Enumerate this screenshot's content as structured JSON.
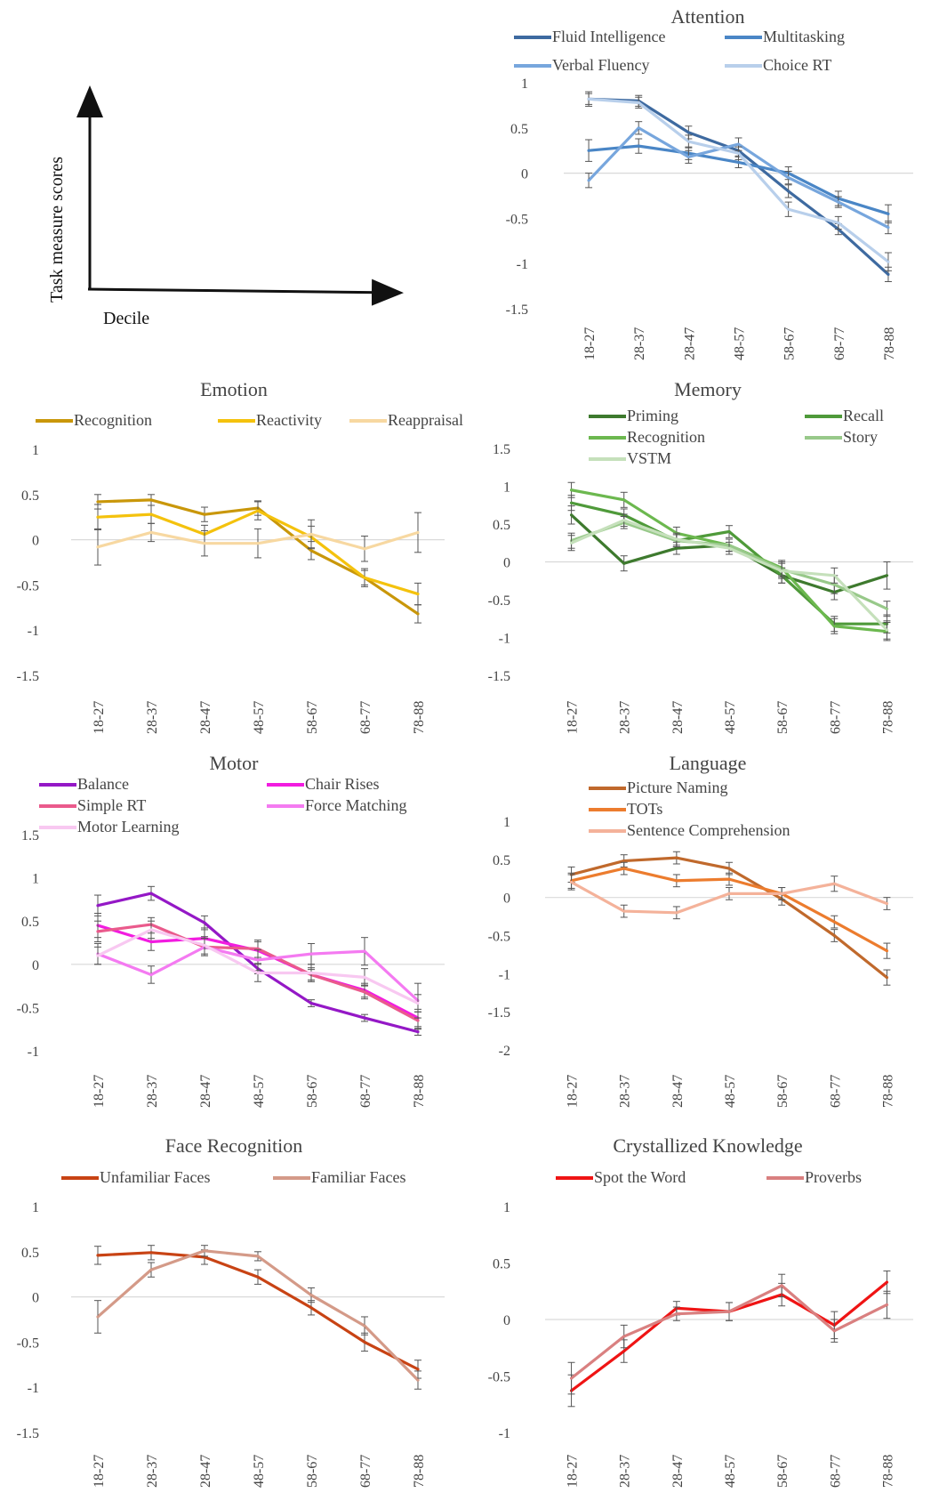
{
  "schematic": {
    "y_label": "Task measure scores",
    "x_label": "Decile"
  },
  "chart_data": [
    {
      "id": "attention",
      "type": "line",
      "title": "Attention",
      "categories": [
        "18-27",
        "28-37",
        "28-47",
        "48-57",
        "58-67",
        "68-77",
        "78-88"
      ],
      "yticks": [
        "1",
        "0.5",
        "0",
        "-0.5",
        "-1",
        "-1.5"
      ],
      "ylim": [
        -1.5,
        1
      ],
      "error_bars": true,
      "legend_columns": 2,
      "series": [
        {
          "name": "Fluid Intelligence",
          "color": "#3e6aa0",
          "values": [
            0.82,
            0.8,
            0.45,
            0.25,
            -0.2,
            -0.62,
            -1.12
          ],
          "err": [
            0.08,
            0.06,
            0.07,
            0.06,
            0.07,
            0.06,
            0.08
          ]
        },
        {
          "name": "Multitasking",
          "color": "#4a86c6",
          "values": [
            0.25,
            0.3,
            0.22,
            0.12,
            0.0,
            -0.28,
            -0.45
          ],
          "err": [
            0.12,
            0.08,
            0.07,
            0.06,
            0.07,
            0.08,
            0.1
          ]
        },
        {
          "name": "Verbal Fluency",
          "color": "#77a6dd",
          "values": [
            -0.08,
            0.5,
            0.18,
            0.32,
            -0.05,
            -0.32,
            -0.6
          ],
          "err": [
            0.08,
            0.07,
            0.07,
            0.07,
            0.07,
            0.06,
            0.07
          ]
        },
        {
          "name": "Choice RT",
          "color": "#b8cfeb",
          "values": [
            0.82,
            0.78,
            0.35,
            0.22,
            -0.4,
            -0.55,
            -0.98
          ],
          "err": [
            0.06,
            0.06,
            0.07,
            0.07,
            0.08,
            0.07,
            0.1
          ]
        }
      ]
    },
    {
      "id": "emotion",
      "type": "line",
      "title": "Emotion",
      "categories": [
        "18-27",
        "28-37",
        "28-47",
        "48-57",
        "58-67",
        "68-77",
        "78-88"
      ],
      "yticks": [
        "1",
        "0.5",
        "0",
        "-0.5",
        "-1",
        "-1.5"
      ],
      "ylim": [
        -1.5,
        1
      ],
      "error_bars": true,
      "legend_columns": 3,
      "series": [
        {
          "name": "Recognition",
          "color": "#c9970a",
          "values": [
            0.42,
            0.44,
            0.28,
            0.35,
            -0.12,
            -0.42,
            -0.82
          ],
          "err": [
            0.08,
            0.06,
            0.08,
            0.08,
            0.1,
            0.08,
            0.1
          ]
        },
        {
          "name": "Reactivity",
          "color": "#f4c20d",
          "values": [
            0.25,
            0.28,
            0.06,
            0.32,
            0.03,
            -0.42,
            -0.6
          ],
          "err": [
            0.14,
            0.1,
            0.1,
            0.1,
            0.12,
            0.1,
            0.12
          ]
        },
        {
          "name": "Reappraisal",
          "color": "#f7d8a1",
          "values": [
            -0.08,
            0.08,
            -0.04,
            -0.04,
            0.06,
            -0.1,
            0.08
          ],
          "err": [
            0.2,
            0.1,
            0.14,
            0.16,
            0.16,
            0.14,
            0.22
          ]
        }
      ]
    },
    {
      "id": "memory",
      "type": "line",
      "title": "Memory",
      "categories": [
        "18-27",
        "28-37",
        "28-47",
        "48-57",
        "58-67",
        "68-77",
        "78-88"
      ],
      "yticks": [
        "1.5",
        "1",
        "0.5",
        "0",
        "-0.5",
        "-1",
        "-1.5"
      ],
      "ylim": [
        -1.5,
        1.5
      ],
      "error_bars": true,
      "legend_columns": 2,
      "series": [
        {
          "name": "Priming",
          "color": "#3e7a2e",
          "values": [
            0.62,
            -0.02,
            0.18,
            0.22,
            -0.18,
            -0.4,
            -0.18
          ],
          "err": [
            0.12,
            0.1,
            0.08,
            0.08,
            0.1,
            0.1,
            0.18
          ]
        },
        {
          "name": "Recall",
          "color": "#4f9a3a",
          "values": [
            0.78,
            0.62,
            0.28,
            0.4,
            -0.18,
            -0.82,
            -0.82
          ],
          "err": [
            0.1,
            0.08,
            0.08,
            0.08,
            0.1,
            0.1,
            0.12
          ]
        },
        {
          "name": "Recognition",
          "color": "#6cb84f",
          "values": [
            0.95,
            0.82,
            0.38,
            0.22,
            -0.08,
            -0.85,
            -0.92
          ],
          "err": [
            0.1,
            0.1,
            0.08,
            0.08,
            0.1,
            0.1,
            0.12
          ]
        },
        {
          "name": "Story",
          "color": "#98c98a",
          "values": [
            0.28,
            0.52,
            0.28,
            0.22,
            -0.1,
            -0.3,
            -0.62
          ],
          "err": [
            0.1,
            0.08,
            0.08,
            0.08,
            0.1,
            0.12,
            0.1
          ]
        },
        {
          "name": "VSTM",
          "color": "#c5e0bb",
          "values": [
            0.25,
            0.55,
            0.3,
            0.18,
            -0.12,
            -0.18,
            -0.9
          ],
          "err": [
            0.1,
            0.08,
            0.08,
            0.08,
            0.1,
            0.1,
            0.12
          ]
        }
      ]
    },
    {
      "id": "motor",
      "type": "line",
      "title": "Motor",
      "categories": [
        "18-27",
        "28-37",
        "28-47",
        "48-57",
        "58-67",
        "68-77",
        "78-88"
      ],
      "yticks": [
        "1.5",
        "1",
        "0.5",
        "0",
        "-0.5",
        "-1"
      ],
      "ylim": [
        -1,
        1.5
      ],
      "error_bars": true,
      "legend_columns": 2,
      "series": [
        {
          "name": "Balance",
          "color": "#9418c6",
          "values": [
            0.68,
            0.82,
            0.48,
            -0.05,
            -0.45,
            -0.62,
            -0.78
          ],
          "err": [
            0.12,
            0.08,
            0.08,
            0.06,
            0.04,
            0.04,
            0.04
          ]
        },
        {
          "name": "Chair Rises",
          "color": "#f21ce0",
          "values": [
            0.45,
            0.26,
            0.3,
            0.16,
            -0.12,
            -0.3,
            -0.62
          ],
          "err": [
            0.14,
            0.1,
            0.12,
            0.1,
            0.06,
            0.08,
            0.1
          ]
        },
        {
          "name": "Simple RT",
          "color": "#ea5a8c",
          "values": [
            0.38,
            0.46,
            0.2,
            0.18,
            -0.12,
            -0.32,
            -0.65
          ],
          "err": [
            0.12,
            0.08,
            0.1,
            0.1,
            0.08,
            0.08,
            0.1
          ]
        },
        {
          "name": "Force Matching",
          "color": "#f47af1",
          "values": [
            0.12,
            -0.12,
            0.2,
            0.05,
            0.12,
            0.15,
            -0.42
          ],
          "err": [
            0.12,
            0.1,
            0.1,
            0.12,
            0.12,
            0.16,
            0.2
          ]
        },
        {
          "name": "Motor Learning",
          "color": "#f8c8f1",
          "values": [
            0.1,
            0.4,
            0.22,
            -0.1,
            -0.1,
            -0.15,
            -0.45
          ],
          "err": [
            0.1,
            0.1,
            0.1,
            0.1,
            0.1,
            0.1,
            0.1
          ]
        }
      ]
    },
    {
      "id": "language",
      "type": "line",
      "title": "Language",
      "categories": [
        "18-27",
        "28-37",
        "28-47",
        "48-57",
        "58-67",
        "68-77",
        "78-88"
      ],
      "yticks": [
        "1",
        "0.5",
        "0",
        "-0.5",
        "-1",
        "-1.5",
        "-2"
      ],
      "ylim": [
        -2,
        1
      ],
      "error_bars": true,
      "legend_columns": 1,
      "series": [
        {
          "name": "Picture Naming",
          "color": "#c0692c",
          "values": [
            0.3,
            0.48,
            0.52,
            0.38,
            -0.02,
            -0.5,
            -1.05
          ],
          "err": [
            0.1,
            0.08,
            0.08,
            0.08,
            0.08,
            0.08,
            0.1
          ]
        },
        {
          "name": "TOTs",
          "color": "#ec7c2e",
          "values": [
            0.22,
            0.38,
            0.22,
            0.24,
            0.05,
            -0.32,
            -0.7
          ],
          "err": [
            0.1,
            0.08,
            0.08,
            0.08,
            0.08,
            0.08,
            0.1
          ]
        },
        {
          "name": "Sentence Comprehension",
          "color": "#f4b29a",
          "values": [
            0.2,
            -0.18,
            -0.2,
            0.05,
            0.05,
            0.18,
            -0.08
          ],
          "err": [
            0.1,
            0.08,
            0.08,
            0.08,
            0.08,
            0.1,
            0.08
          ]
        }
      ]
    },
    {
      "id": "face",
      "type": "line",
      "title": "Face Recognition",
      "categories": [
        "18-27",
        "28-37",
        "28-47",
        "48-57",
        "58-67",
        "68-77",
        "78-88"
      ],
      "yticks": [
        "1",
        "0.5",
        "0",
        "-0.5",
        "-1",
        "-1.5"
      ],
      "ylim": [
        -1.5,
        1
      ],
      "error_bars": true,
      "legend_columns": 2,
      "series": [
        {
          "name": "Unfamiliar Faces",
          "color": "#c84314",
          "values": [
            0.46,
            0.49,
            0.44,
            0.22,
            -0.12,
            -0.5,
            -0.8
          ],
          "err": [
            0.1,
            0.08,
            0.08,
            0.08,
            0.08,
            0.1,
            0.1
          ]
        },
        {
          "name": "Familiar Faces",
          "color": "#d49a88",
          "values": [
            -0.22,
            0.3,
            0.51,
            0.45,
            0.02,
            -0.32,
            -0.92
          ],
          "err": [
            0.18,
            0.08,
            0.06,
            0.05,
            0.08,
            0.1,
            0.1
          ]
        }
      ]
    },
    {
      "id": "crystallized",
      "type": "line",
      "title": "Crystallized  Knowledge",
      "categories": [
        "18-27",
        "28-37",
        "28-47",
        "48-57",
        "58-67",
        "68-77",
        "78-88"
      ],
      "yticks": [
        "1",
        "0.5",
        "0",
        "-0.5",
        "-1"
      ],
      "ylim": [
        -1,
        1
      ],
      "error_bars": true,
      "legend_columns": 2,
      "series": [
        {
          "name": "Spot the Word",
          "color": "#ef1414",
          "values": [
            -0.63,
            -0.28,
            0.1,
            0.07,
            0.22,
            -0.05,
            0.33
          ],
          "err": [
            0.14,
            0.1,
            0.06,
            0.08,
            0.1,
            0.12,
            0.1
          ]
        },
        {
          "name": "Proverbs",
          "color": "#d98080",
          "values": [
            -0.52,
            -0.15,
            0.05,
            0.07,
            0.3,
            -0.1,
            0.13
          ],
          "err": [
            0.14,
            0.1,
            0.06,
            0.08,
            0.1,
            0.1,
            0.12
          ]
        }
      ]
    }
  ]
}
